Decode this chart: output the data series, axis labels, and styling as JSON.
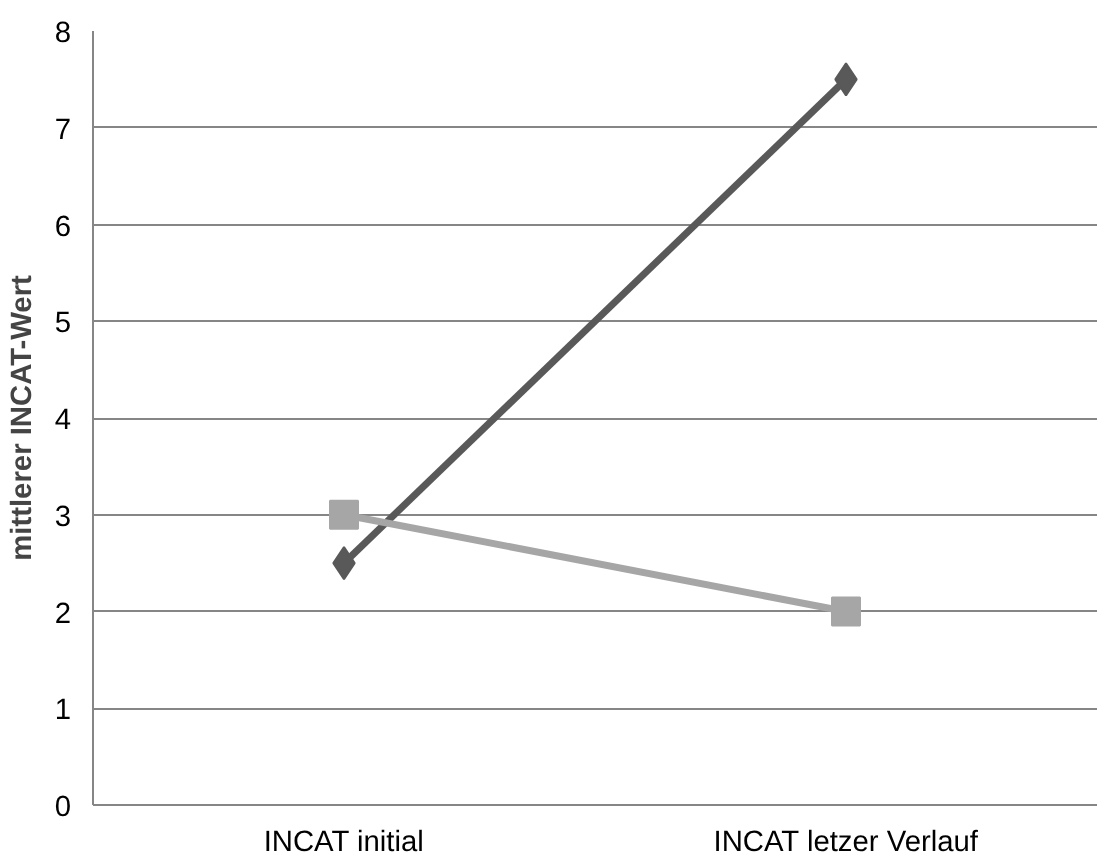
{
  "chart_data": {
    "type": "line",
    "ylabel": "mittlerer INCAT-Wert",
    "categories": [
      "INCAT initial",
      "INCAT letzer Verlauf"
    ],
    "series": [
      {
        "color": "#595959",
        "values": [
          2.5,
          7.5
        ],
        "marker": "diamond"
      },
      {
        "color": "#a6a6a6",
        "values": [
          3,
          2
        ],
        "marker": "square"
      }
    ],
    "ylim": [
      0,
      8
    ],
    "yticks": [
      0,
      1,
      2,
      3,
      4,
      5,
      6,
      7,
      8
    ],
    "grid": "y",
    "line_style": "solid"
  }
}
